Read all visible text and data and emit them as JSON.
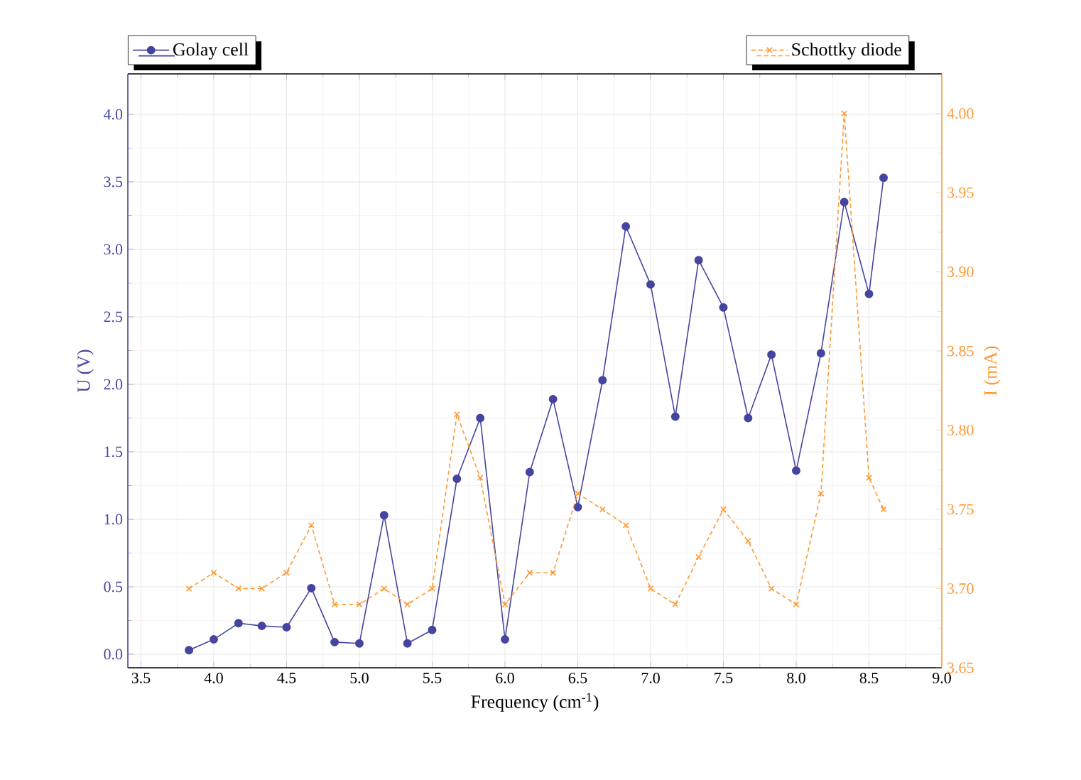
{
  "chart_data": {
    "type": "line",
    "xlabel": "Frequency (cm$^{-1}$)",
    "ylabel": "U (V)",
    "y2label": "I (mA)",
    "x": [
      3.83,
      4.0,
      4.17,
      4.33,
      4.5,
      4.67,
      4.83,
      5.0,
      5.17,
      5.33,
      5.5,
      5.67,
      5.83,
      6.0,
      6.17,
      6.33,
      6.5,
      6.67,
      6.83,
      7.0,
      7.17,
      7.33,
      7.5,
      7.67,
      7.83,
      8.0,
      8.17,
      8.33,
      8.5,
      8.6
    ],
    "series": [
      {
        "name": "Golay cell",
        "color": "#4545a0",
        "marker": "circle",
        "line_style": "solid",
        "values": [
          0.03,
          0.11,
          0.23,
          0.21,
          0.2,
          0.49,
          0.09,
          0.08,
          1.03,
          0.08,
          0.18,
          1.3,
          1.75,
          0.11,
          1.35,
          1.89,
          1.09,
          2.03,
          3.17,
          2.74,
          1.76,
          2.92,
          2.57,
          1.75,
          2.22,
          1.36,
          2.23,
          3.35,
          2.67,
          3.53
        ]
      },
      {
        "name": "Schottky diode",
        "color": "#ff9933",
        "marker": "cross",
        "line_style": "dashed",
        "axis": "y2",
        "values": [
          3.7,
          3.71,
          3.7,
          3.7,
          3.71,
          3.74,
          3.69,
          3.69,
          3.7,
          3.69,
          3.7,
          3.81,
          3.77,
          3.69,
          3.71,
          3.71,
          3.76,
          3.75,
          3.74,
          3.7,
          3.69,
          3.72,
          3.75,
          3.73,
          3.7,
          3.69,
          3.76,
          4.0,
          3.77,
          3.75
        ]
      }
    ],
    "xlim": [
      3.41,
      9.0
    ],
    "xticks": [
      3.5,
      {
        "value": 4,
        "label": "4.0"
      },
      4.5,
      {
        "value": 5,
        "label": "5.0"
      },
      5.5,
      {
        "value": 6,
        "label": "6.0"
      },
      6.5,
      {
        "value": 7,
        "label": "7.0"
      },
      7.5,
      {
        "value": 8,
        "label": "8.0"
      },
      8.5,
      {
        "value": 9,
        "label": "9.0"
      }
    ],
    "ylim": [
      -0.1,
      4.3
    ],
    "yticks": [
      {
        "value": 0,
        "label": "0.0"
      },
      0.5,
      {
        "value": 1,
        "label": "1.0"
      },
      1.5,
      {
        "value": 2,
        "label": "2.0"
      },
      2.5,
      {
        "value": 3,
        "label": "3.0"
      },
      3.5,
      {
        "value": 4,
        "label": "4.0"
      }
    ],
    "y2lim": [
      3.65,
      4.025
    ],
    "y2ticks": [
      3.65,
      {
        "value": 3.7,
        "label": "3.70"
      },
      3.75,
      {
        "value": 3.8,
        "label": "3.80"
      },
      3.85,
      {
        "value": 3.9,
        "label": "3.90"
      },
      3.95,
      {
        "value": 4,
        "label": "4.00"
      }
    ],
    "grid": true,
    "legend": "top"
  }
}
